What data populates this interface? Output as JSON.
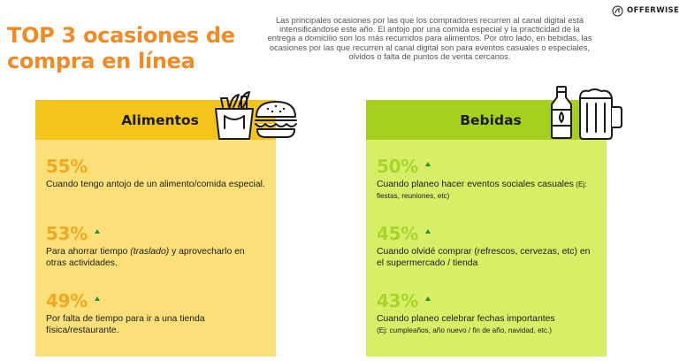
{
  "title": "TOP 3 ocasiones de compra en línea",
  "intro": "Las principales ocasiones por las que los compradores recurren al canal digital está intensificándose este año. El antojo por una comida especial y la practicidad de la entrega a domicilio son los más recurridos para alimentos. Por otro lado, en bebidas, las ocasiones por las que recurren al canal digital son para eventos casuales o especiales, olvidos o falta de puntos de venta cercanos.",
  "brand": {
    "name": "OFFERWISE"
  },
  "colors": {
    "title": "#f28a24",
    "food_header": "#f3c41a",
    "food_body": "#fbe07a",
    "drinks_header": "#a5d11c",
    "drinks_body": "#d7ee67",
    "trend_up": "#2a8f3e"
  },
  "alimentos": {
    "heading": "Alimentos",
    "icons": [
      "grocery-bag-icon",
      "burger-icon"
    ],
    "items": [
      {
        "pct": "55%",
        "trend": "none",
        "desc": "Cuando tengo antojo de un alimento/comida especial."
      },
      {
        "pct": "53%",
        "trend": "up",
        "desc_pre": "Para ahorrar tiempo ",
        "desc_em": "(traslado)",
        "desc_post": " y aprovecharlo en otras actividades."
      },
      {
        "pct": "49%",
        "trend": "up",
        "desc": "Por falta de tiempo para ir a una tienda física/restaurante."
      }
    ]
  },
  "bebidas": {
    "heading": "Bebidas",
    "icons": [
      "bottle-icon",
      "beer-mug-icon"
    ],
    "items": [
      {
        "pct": "50%",
        "trend": "up",
        "desc_main": "Cuando planeo hacer eventos sociales casuales",
        "desc_small": " (Ej: fiestas, reuniones, etc)"
      },
      {
        "pct": "45%",
        "trend": "up",
        "desc": "Cuando olvidé comprar (refrescos, cervezas, etc) en el supermercado / tienda"
      },
      {
        "pct": "43%",
        "trend": "up",
        "desc_main": "Cuando planeo celebrar fechas importantes",
        "desc_small": "(Ej: cumpleaños, año nuevo / fin de año, navidad, etc.)"
      }
    ]
  }
}
